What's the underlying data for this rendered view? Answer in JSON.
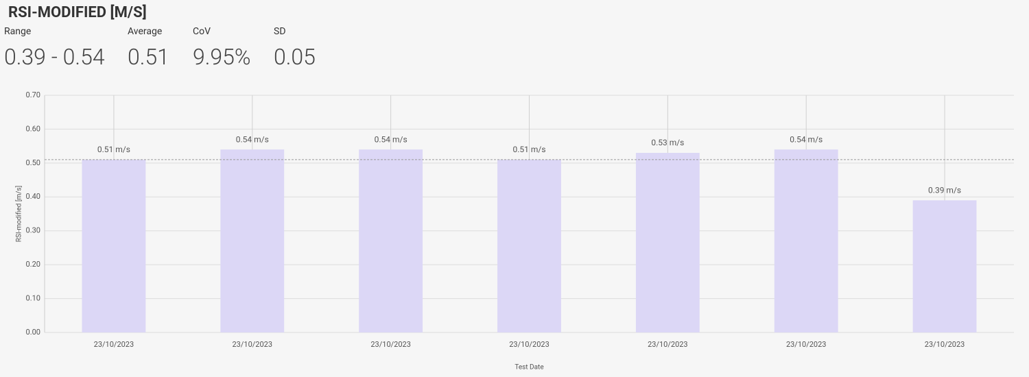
{
  "header": {
    "title": "RSI-MODIFIED [M/S]",
    "stats": [
      {
        "label": "Range",
        "value": "0.39 - 0.54"
      },
      {
        "label": "Average",
        "value": "0.51"
      },
      {
        "label": "CoV",
        "value": "9.95%"
      },
      {
        "label": "SD",
        "value": "0.05"
      }
    ]
  },
  "chart_data": {
    "type": "bar",
    "categories": [
      "23/10/2023",
      "23/10/2023",
      "23/10/2023",
      "23/10/2023",
      "23/10/2023",
      "23/10/2023",
      "23/10/2023"
    ],
    "values": [
      0.51,
      0.54,
      0.54,
      0.51,
      0.53,
      0.54,
      0.39
    ],
    "value_labels": [
      "0.51 m/s",
      "0.54 m/s",
      "0.54 m/s",
      "0.51 m/s",
      "0.53 m/s",
      "0.54 m/s",
      "0.39 m/s"
    ],
    "color": "#dcd7f6",
    "reference_line": 0.51,
    "x_label": "Test Date",
    "y_label": "RSI-modified [m/s]",
    "ylim": [
      0,
      0.7
    ],
    "yticks": [
      {
        "value": 0,
        "label": "0.00"
      },
      {
        "value": 0.1,
        "label": "0.10"
      },
      {
        "value": 0.2,
        "label": "0.20"
      },
      {
        "value": 0.3,
        "label": "0.30"
      },
      {
        "value": 0.4,
        "label": "0.40"
      },
      {
        "value": 0.5,
        "label": "0.50"
      },
      {
        "value": 0.6,
        "label": "0.60"
      },
      {
        "value": 0.7,
        "label": "0.70"
      }
    ],
    "grid": true
  }
}
